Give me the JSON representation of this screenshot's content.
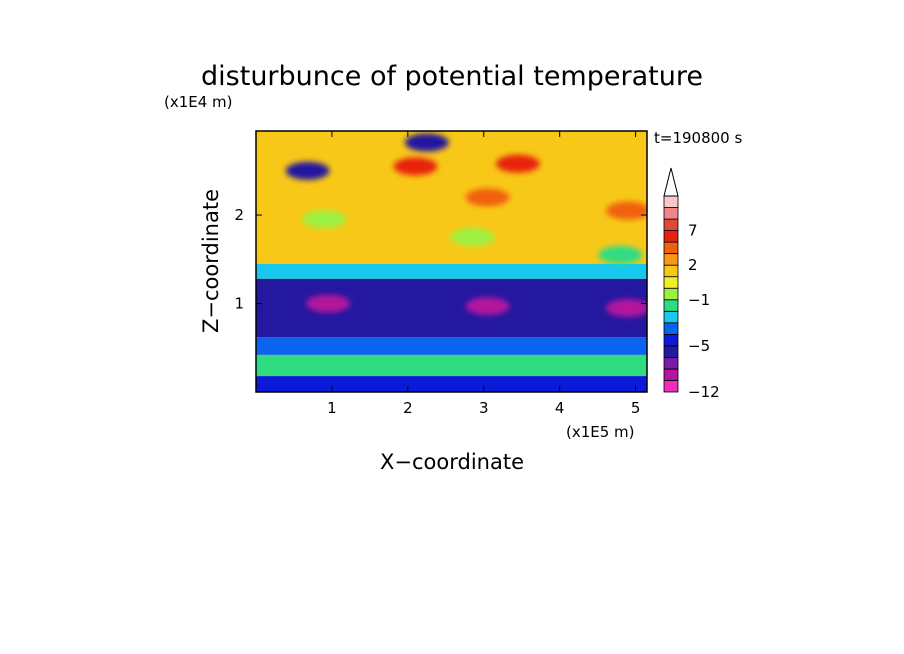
{
  "chart_data": {
    "type": "heatmap",
    "title": "disturbunce of potential temperature",
    "xlabel": "X−coordinate",
    "ylabel": "Z−coordinate",
    "x_unit": "(x1E5 m)",
    "y_unit": "(x1E4 m)",
    "time_label": "t=190800 s",
    "xlim": [
      0,
      5.15
    ],
    "ylim": [
      0,
      2.95
    ],
    "x_ticks": [
      "1",
      "2",
      "3",
      "4",
      "5"
    ],
    "y_ticks": [
      "1",
      "2"
    ],
    "colorbar": {
      "levels": [
        -12,
        -11,
        -9,
        -7,
        -5,
        -4,
        -3,
        -2,
        -1,
        0,
        1,
        2,
        3,
        5,
        7,
        8,
        9,
        10,
        11
      ],
      "tick_labels": [
        "7",
        "2",
        "−1",
        "−5",
        "−12"
      ],
      "colors": [
        "#f02cc2",
        "#b4149e",
        "#7a1aa8",
        "#2418a0",
        "#0a1ad8",
        "#0a64f0",
        "#18c8f0",
        "#30dc82",
        "#9cf040",
        "#f0f028",
        "#f8c818",
        "#f89818",
        "#f06010",
        "#e82010",
        "#e04838",
        "#f08888",
        "#f8c8c8"
      ],
      "extend": "max"
    },
    "bands": [
      {
        "zmin": 0.0,
        "zmax": 0.18,
        "value": -4.5
      },
      {
        "zmin": 0.18,
        "zmax": 0.42,
        "value": -1.5
      },
      {
        "zmin": 0.42,
        "zmax": 0.62,
        "value": -3.5
      },
      {
        "zmin": 0.62,
        "zmax": 1.28,
        "value": -6.0
      },
      {
        "zmin": 1.28,
        "zmax": 1.45,
        "value": -2.5
      },
      {
        "zmin": 1.45,
        "zmax": 2.95,
        "value": 1.5
      }
    ],
    "features": [
      {
        "x": 0.68,
        "z": 2.5,
        "value": -6.0
      },
      {
        "x": 2.25,
        "z": 2.82,
        "value": -6.0
      },
      {
        "x": 3.45,
        "z": 2.58,
        "value": 5.0
      },
      {
        "x": 2.1,
        "z": 2.55,
        "value": 5.0
      },
      {
        "x": 3.05,
        "z": 2.2,
        "value": 3.0
      },
      {
        "x": 4.9,
        "z": 2.05,
        "value": 3.0
      },
      {
        "x": 2.85,
        "z": 1.75,
        "value": -0.5
      },
      {
        "x": 0.9,
        "z": 1.95,
        "value": -0.5
      },
      {
        "x": 4.8,
        "z": 1.55,
        "value": -1.5
      },
      {
        "x": 0.95,
        "z": 1.0,
        "value": -9.5
      },
      {
        "x": 3.05,
        "z": 0.97,
        "value": -9.5
      },
      {
        "x": 4.9,
        "z": 0.95,
        "value": -9.5
      }
    ]
  }
}
